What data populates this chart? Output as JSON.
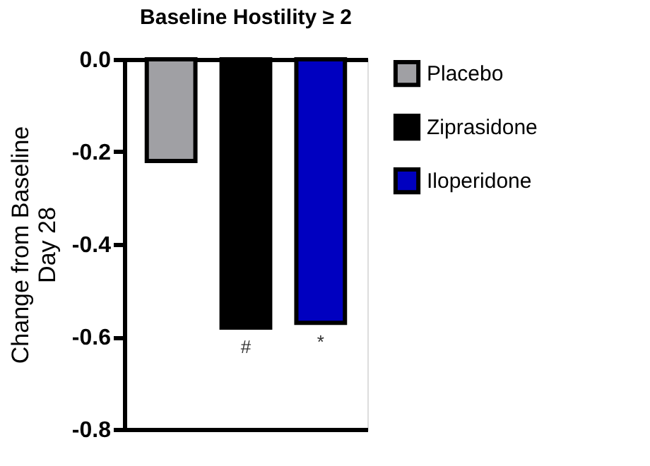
{
  "chart_data": {
    "type": "bar",
    "title": "Baseline Hostility ≥ 2",
    "ylabel": "Change from Baseline\nDay 28",
    "categories": [
      null,
      null,
      null
    ],
    "series": [
      {
        "name": "Placebo",
        "color": "#a0a0a4",
        "values": [
          -0.22,
          null,
          null
        ]
      },
      {
        "name": "Ziprasidone",
        "color": "#000000",
        "values": [
          null,
          -0.58,
          null
        ]
      },
      {
        "name": "Iloperidone",
        "color": "#0000c0",
        "values": [
          null,
          null,
          -0.57
        ]
      }
    ],
    "ylim": [
      -0.8,
      0.0
    ],
    "yticks": [
      {
        "value": -0.8,
        "label": "-0.8"
      },
      {
        "value": -0.6,
        "label": "-0.6"
      },
      {
        "value": -0.4,
        "label": "-0.4"
      },
      {
        "value": -0.2,
        "label": "-0.2"
      },
      {
        "value": 0,
        "label": "0.0"
      }
    ],
    "annotations": [
      "#",
      "*"
    ],
    "grid": false,
    "legend": "right",
    "tick_labels": "y"
  }
}
